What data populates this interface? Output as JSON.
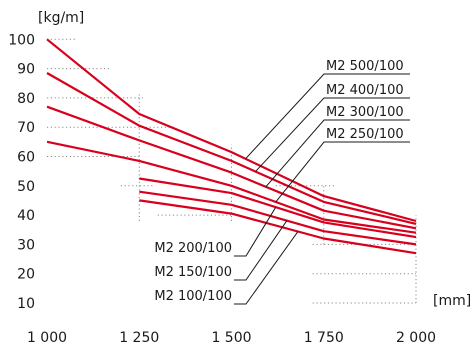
{
  "chart_data": {
    "type": "line",
    "x_unit": "[mm]",
    "y_unit": "[kg/m]",
    "x_ticks": [
      "1 000",
      "1 250",
      "1 500",
      "1 750",
      "2 000"
    ],
    "y_ticks": [
      "10",
      "20",
      "30",
      "40",
      "50",
      "60",
      "70",
      "80",
      "90",
      "100"
    ],
    "xlim": [
      1000,
      2000
    ],
    "ylim": [
      5,
      103
    ],
    "grid": "dotted reference lines only",
    "line_color": "#d8001c",
    "series": [
      {
        "name": "M2 500/100",
        "x": [
          1000,
          1250,
          1500,
          1750,
          2000
        ],
        "y": [
          100,
          74.5,
          61.5,
          46.5,
          38
        ]
      },
      {
        "name": "M2 400/100",
        "x": [
          1000,
          1250,
          1500,
          1750,
          2000
        ],
        "y": [
          88.5,
          70.5,
          58.5,
          44.5,
          37
        ]
      },
      {
        "name": "M2 300/100",
        "x": [
          1000,
          1250,
          1500,
          1750,
          2000
        ],
        "y": [
          77,
          65.5,
          54.5,
          41.5,
          35.5
        ]
      },
      {
        "name": "M2 250/100",
        "x": [
          1000,
          1250,
          1500,
          1750,
          2000
        ],
        "y": [
          65,
          58.5,
          50,
          38.5,
          34
        ]
      },
      {
        "name": "M2 200/100",
        "x": [
          1250,
          1500,
          1750,
          2000
        ],
        "y": [
          52.5,
          47.5,
          37.5,
          32.5
        ]
      },
      {
        "name": "M2 150/100",
        "x": [
          1250,
          1500,
          1750,
          2000
        ],
        "y": [
          48,
          43.5,
          34.5,
          30
        ]
      },
      {
        "name": "M2 100/100",
        "x": [
          1250,
          1500,
          1750,
          2000
        ],
        "y": [
          45,
          40.5,
          32,
          27
        ]
      }
    ]
  }
}
